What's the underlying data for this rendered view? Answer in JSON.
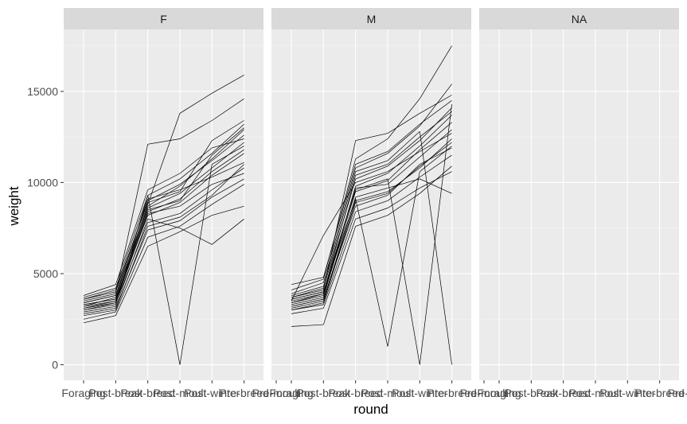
{
  "chart_data": {
    "type": "line",
    "facet_variable": "sex",
    "xlabel": "round",
    "ylabel": "weight",
    "x_categories": [
      "Foraging",
      "Post-break",
      "Post-breed",
      "Post-moult",
      "Post-winter",
      "Pre-breed",
      "Pre-moult"
    ],
    "yticks": [
      0,
      5000,
      10000,
      15000
    ],
    "ylim": [
      -850,
      18400
    ],
    "panels": [
      {
        "label": "F",
        "value_range_by_round": [
          [
            2200,
            4200
          ],
          [
            2600,
            4600
          ],
          [
            6400,
            12100
          ],
          [
            0,
            13800
          ],
          [
            6600,
            15000
          ],
          [
            7900,
            15900
          ]
        ],
        "series": [
          [
            3300,
            3600,
            8200,
            8900,
            10400,
            11600
          ],
          [
            3400,
            3800,
            8600,
            9400,
            10800,
            12200
          ],
          [
            3000,
            3400,
            7800,
            8300,
            9600,
            10800
          ],
          [
            3600,
            4000,
            9000,
            9900,
            11200,
            12600
          ],
          [
            2800,
            3100,
            7400,
            7900,
            9200,
            10200
          ],
          [
            3100,
            3500,
            8400,
            9100,
            10600,
            11800
          ],
          [
            3700,
            4200,
            9300,
            10200,
            11600,
            13200
          ],
          [
            2500,
            2900,
            7000,
            7600,
            8800,
            9900
          ],
          [
            3200,
            3700,
            8800,
            13800,
            14900,
            15900
          ],
          [
            3500,
            3900,
            12100,
            12400,
            13400,
            14600
          ],
          [
            3000,
            3300,
            9300,
            0,
            11000,
            12000
          ],
          [
            2900,
            3200,
            8000,
            7500,
            6600,
            8000
          ],
          [
            3300,
            3600,
            8500,
            9000,
            11500,
            13000
          ],
          [
            3800,
            4400,
            9600,
            10500,
            11900,
            12400
          ],
          [
            2700,
            3000,
            7600,
            8100,
            9300,
            11000
          ],
          [
            3400,
            3800,
            9100,
            9600,
            10300,
            11100
          ],
          [
            3100,
            3400,
            8300,
            8700,
            9900,
            10500
          ],
          [
            3600,
            4100,
            8900,
            9500,
            12300,
            13400
          ],
          [
            2300,
            2700,
            6500,
            7300,
            8200,
            8700
          ],
          [
            3200,
            3500,
            8700,
            9800,
            11300,
            12900
          ]
        ]
      },
      {
        "label": "M",
        "value_range_by_round": [
          [
            2100,
            4800
          ],
          [
            2200,
            7100
          ],
          [
            7500,
            12300
          ],
          [
            1000,
            13500
          ],
          [
            0,
            15200
          ],
          [
            0,
            17500
          ]
        ],
        "series": [
          [
            3500,
            3900,
            9500,
            10100,
            11800,
            13300
          ],
          [
            3700,
            4200,
            10200,
            10900,
            12300,
            14100
          ],
          [
            3200,
            3600,
            8900,
            9400,
            10900,
            12200
          ],
          [
            3900,
            4500,
            10800,
            11600,
            13100,
            15400
          ],
          [
            3000,
            3300,
            8400,
            9000,
            10300,
            11500
          ],
          [
            3400,
            3800,
            9800,
            10500,
            12000,
            13700
          ],
          [
            4100,
            4700,
            11300,
            12400,
            14600,
            17500
          ],
          [
            2800,
            3100,
            8000,
            8600,
            9700,
            10600
          ],
          [
            3600,
            4000,
            9100,
            1000,
            10600,
            12000
          ],
          [
            3300,
            3700,
            9600,
            10200,
            0,
            14300
          ],
          [
            3800,
            4300,
            10600,
            11200,
            12800,
            0
          ],
          [
            3100,
            3500,
            9200,
            9700,
            10200,
            9400
          ],
          [
            2100,
            2200,
            7600,
            8200,
            9400,
            10900
          ],
          [
            3500,
            7100,
            10000,
            10600,
            11700,
            12700
          ],
          [
            3700,
            4100,
            12300,
            12700,
            13800,
            14800
          ],
          [
            3200,
            3600,
            8700,
            9300,
            11000,
            11900
          ],
          [
            3400,
            3900,
            10400,
            11000,
            12500,
            13900
          ],
          [
            3000,
            3400,
            9000,
            9500,
            10800,
            12400
          ],
          [
            4400,
            4800,
            11000,
            11700,
            13200,
            14500
          ],
          [
            3600,
            4000,
            9700,
            9900,
            11400,
            12900
          ]
        ]
      },
      {
        "label": "NA",
        "series": []
      }
    ],
    "colors": {
      "panel_background": "#ebebeb",
      "strip_background": "#d9d9d9",
      "grid_major": "#ffffff",
      "line": "#000000"
    },
    "grid": true,
    "legend": "none"
  }
}
